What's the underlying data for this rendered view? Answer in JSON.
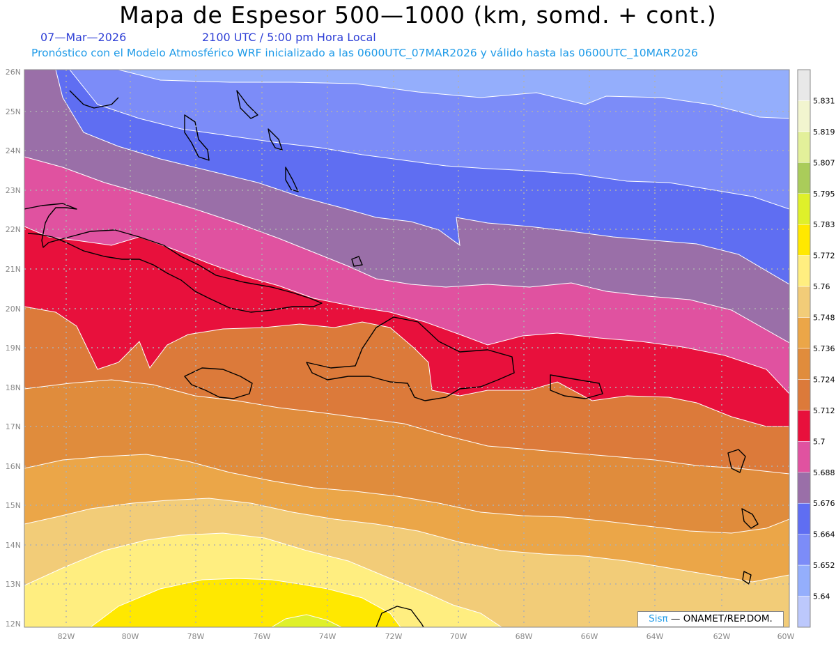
{
  "header": {
    "title": "Mapa de Espesor 500—1000 (km, somd. + cont.)",
    "date": "07—Mar—2026",
    "time": "2100 UTC / 5:00 pm Hora Local",
    "description": "Pronóstico con el Modelo Atmosférico WRF inicializado a las 0600UTC_07MAR2026 y válido hasta las  0600UTC_10MAR2026"
  },
  "credit": {
    "brand": "Sisπ",
    "text": " —  ONAMET/REP.DOM."
  },
  "axes": {
    "lat_labels": [
      "26N",
      "25N",
      "24N",
      "23N",
      "22N",
      "21N",
      "20N",
      "19N",
      "18N",
      "17N",
      "16N",
      "15N",
      "14N",
      "13N",
      "12N"
    ],
    "lon_labels": [
      "82W",
      "80W",
      "78W",
      "76W",
      "74W",
      "72W",
      "70W",
      "68W",
      "66W",
      "64W",
      "62W",
      "60W"
    ]
  },
  "colorbar": {
    "labels": [
      "5.831",
      "5.819",
      "5.807",
      "5.795",
      "5.783",
      "5.772",
      "5.76",
      "5.748",
      "5.736",
      "5.724",
      "5.712",
      "5.7",
      "5.688",
      "5.676",
      "5.664",
      "5.652",
      "5.64"
    ],
    "colors": [
      "#e8e8e8",
      "#f2f5cf",
      "#e3f09a",
      "#aacc5a",
      "#dff02a",
      "#ffe800",
      "#ffee80",
      "#f2cc78",
      "#eba648",
      "#e08c3c",
      "#dc7a3a",
      "#e8103c",
      "#e052a0",
      "#9a6fa8",
      "#5f6ef2",
      "#7c8cf8",
      "#94aefc",
      "#bcc8fc"
    ]
  },
  "legend_colors": {
    "land_outline": "#000000",
    "contour_line": "#ffffff",
    "grid": "#b0b0b0"
  }
}
